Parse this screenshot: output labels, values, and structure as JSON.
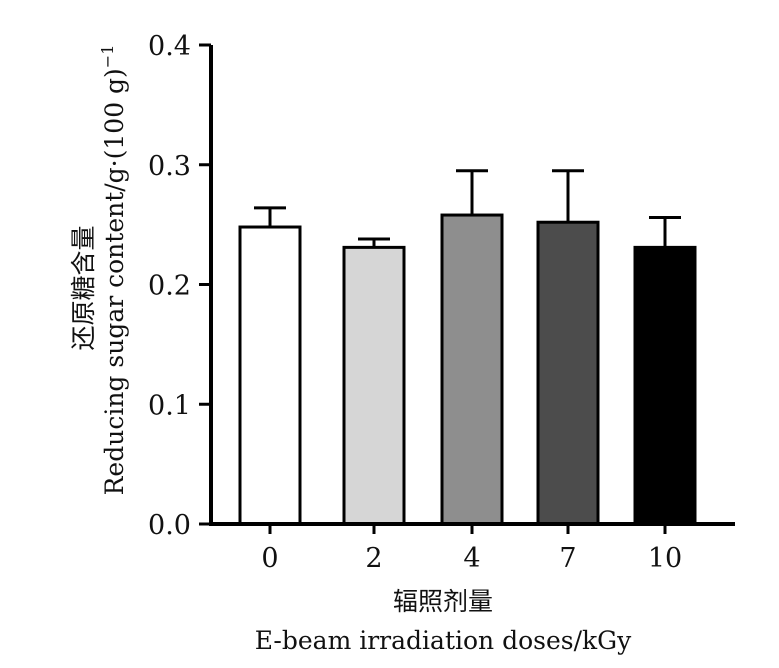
{
  "chart_data": {
    "type": "bar",
    "categories": [
      "0",
      "2",
      "4",
      "7",
      "10"
    ],
    "values": [
      0.248,
      0.231,
      0.258,
      0.252,
      0.231
    ],
    "errors": [
      0.016,
      0.007,
      0.037,
      0.043,
      0.025
    ],
    "bar_colors": [
      "#ffffff",
      "#d6d6d6",
      "#8e8e8e",
      "#4c4c4c",
      "#000000"
    ],
    "ylim": [
      0.0,
      0.4
    ],
    "yticks": [
      "0.0",
      "0.1",
      "0.2",
      "0.3",
      "0.4"
    ],
    "ylabel_cn": "还原糖含量",
    "ylabel_en": "Reducing sugar content/g·(100 g)",
    "ylabel_sup": "−1",
    "xlabel_cn": "辐照剂量",
    "xlabel_en": "E-beam irradiation doses/kGy",
    "grid": false,
    "legend": "none"
  }
}
